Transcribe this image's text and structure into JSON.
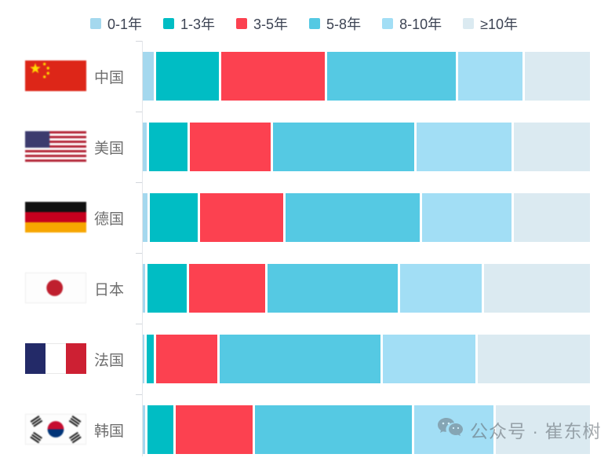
{
  "chart_data": {
    "type": "bar",
    "orientation": "horizontal",
    "stacked": "percent",
    "unit": "%",
    "title": "",
    "legend_position": "top",
    "grid": false,
    "categories": [
      "中国",
      "美国",
      "德国",
      "日本",
      "法国",
      "韩国"
    ],
    "series": [
      {
        "name": "0-1年",
        "color": "#a4d8ee",
        "values": [
          2.5,
          0.9,
          1.1,
          0.5,
          0.4,
          0.5
        ]
      },
      {
        "name": "1-3年",
        "color": "#00bdc4",
        "values": [
          14.4,
          8.9,
          11.0,
          9.0,
          1.6,
          5.9
        ]
      },
      {
        "name": "3-5年",
        "color": "#fc4150",
        "values": [
          23.8,
          18.4,
          19.0,
          17.6,
          14.1,
          17.8
        ]
      },
      {
        "name": "5-8年",
        "color": "#55c9e3",
        "values": [
          29.5,
          32.5,
          30.8,
          29.9,
          36.9,
          35.9
        ]
      },
      {
        "name": "8-10年",
        "color": "#a2def5",
        "values": [
          14.9,
          21.8,
          20.7,
          18.7,
          21.3,
          18.2
        ]
      },
      {
        "name": "≥10年",
        "color": "#dbeaf1",
        "values": [
          14.9,
          17.5,
          17.4,
          24.3,
          25.7,
          21.7
        ]
      }
    ],
    "xlim": [
      0,
      100
    ]
  },
  "rows": [
    {
      "label": "中国",
      "flag": "cn"
    },
    {
      "label": "美国",
      "flag": "us"
    },
    {
      "label": "德国",
      "flag": "de"
    },
    {
      "label": "日本",
      "flag": "jp"
    },
    {
      "label": "法国",
      "flag": "fr"
    },
    {
      "label": "韩国",
      "flag": "kr"
    }
  ],
  "watermark": {
    "icon": "wechat-icon",
    "text": "公众号 · 崔东树"
  }
}
